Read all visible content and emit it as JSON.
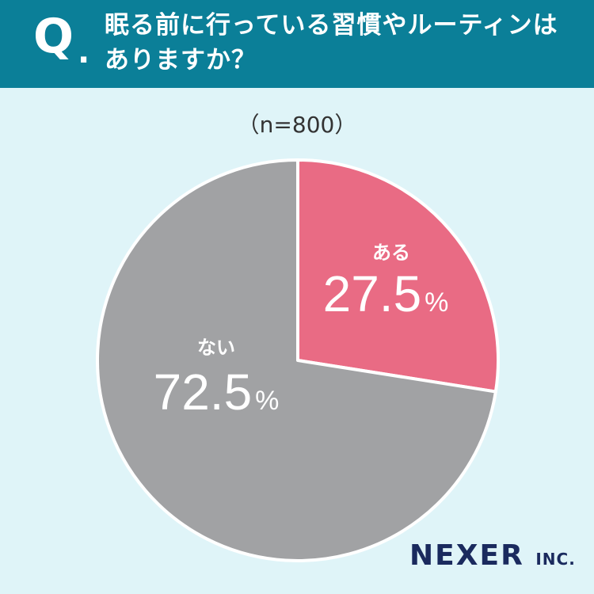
{
  "header": {
    "q_mark": "Q",
    "q_dot": ".",
    "question_line1": "眠る前に行っている習慣やルーティンは",
    "question_line2": "ありますか？"
  },
  "sample_size": "（n=800）",
  "logo": {
    "name": "NEXER",
    "suffix": "INC."
  },
  "colors": {
    "header_bg": "#0b7f98",
    "background": "#dff4f8",
    "yes": "#e96b84",
    "no": "#a1a2a4"
  },
  "chart_data": {
    "type": "pie",
    "categories": [
      "ある",
      "ない"
    ],
    "values": [
      27.5,
      72.5
    ],
    "value_labels": [
      "27.5",
      "72.5"
    ],
    "unit": "%",
    "title": "眠る前に行っている習慣やルーティンはありますか？",
    "colors": [
      "#e96b84",
      "#a1a2a4"
    ]
  }
}
